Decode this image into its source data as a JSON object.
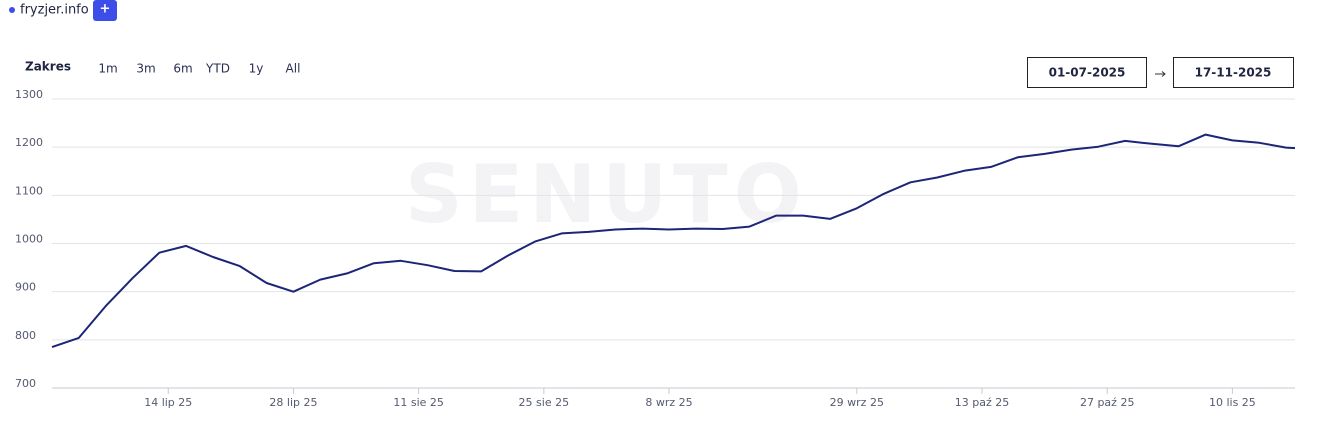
{
  "chart_data": {
    "type": "line",
    "site": "fryzjer.info",
    "add_button": "+",
    "range_label": "Zakres",
    "range_options": [
      "1m",
      "3m",
      "6m",
      "YTD",
      "1y",
      "All"
    ],
    "date_from": "01-07-2025",
    "date_to": "17-11-2025",
    "watermark": "SENUTO",
    "x": [
      "2025-07-01",
      "2025-07-04",
      "2025-07-07",
      "2025-07-10",
      "2025-07-13",
      "2025-07-16",
      "2025-07-19",
      "2025-07-22",
      "2025-07-25",
      "2025-07-28",
      "2025-07-31",
      "2025-08-03",
      "2025-08-06",
      "2025-08-09",
      "2025-08-12",
      "2025-08-15",
      "2025-08-18",
      "2025-08-21",
      "2025-08-24",
      "2025-08-27",
      "2025-08-30",
      "2025-09-02",
      "2025-09-05",
      "2025-09-08",
      "2025-09-11",
      "2025-09-14",
      "2025-09-17",
      "2025-09-20",
      "2025-09-23",
      "2025-09-26",
      "2025-09-29",
      "2025-10-02",
      "2025-10-05",
      "2025-10-08",
      "2025-10-11",
      "2025-10-14",
      "2025-10-17",
      "2025-10-20",
      "2025-10-23",
      "2025-10-26",
      "2025-10-29",
      "2025-11-01",
      "2025-11-04",
      "2025-11-07",
      "2025-11-10",
      "2025-11-13",
      "2025-11-16",
      "2025-11-17"
    ],
    "series": [
      {
        "name": "fryzjer.info",
        "color": "#1c2577",
        "values": [
          785,
          804,
          870,
          928,
          981,
          995,
          972,
          953,
          918,
          900,
          925,
          938,
          959,
          964,
          955,
          943,
          942,
          975,
          1004,
          1021,
          1024,
          1029,
          1031,
          1029,
          1031,
          1030,
          1035,
          1058,
          1058,
          1051,
          1073,
          1103,
          1127,
          1137,
          1151,
          1159,
          1179,
          1186,
          1195,
          1201,
          1213,
          1207,
          1202,
          1226,
          1214,
          1209,
          1199,
          1198
        ]
      }
    ],
    "legend_color": "#3d4ee8",
    "xlim": [
      "2025-07-01",
      "2025-11-17"
    ],
    "xticks": [
      {
        "value": "2025-07-14",
        "label": "14 lip 25"
      },
      {
        "value": "2025-07-28",
        "label": "28 lip 25"
      },
      {
        "value": "2025-08-11",
        "label": "11 sie 25"
      },
      {
        "value": "2025-08-25",
        "label": "25 sie 25"
      },
      {
        "value": "2025-09-08",
        "label": "8 wrz 25"
      },
      {
        "value": "2025-09-29",
        "label": "29 wrz 25"
      },
      {
        "value": "2025-10-13",
        "label": "13 paź 25"
      },
      {
        "value": "2025-10-27",
        "label": "27 paź 25"
      },
      {
        "value": "2025-11-10",
        "label": "10 lis 25"
      }
    ],
    "ylim": [
      700,
      1300
    ],
    "yticks": [
      700,
      800,
      900,
      1000,
      1100,
      1200,
      1300
    ],
    "grid": true
  }
}
